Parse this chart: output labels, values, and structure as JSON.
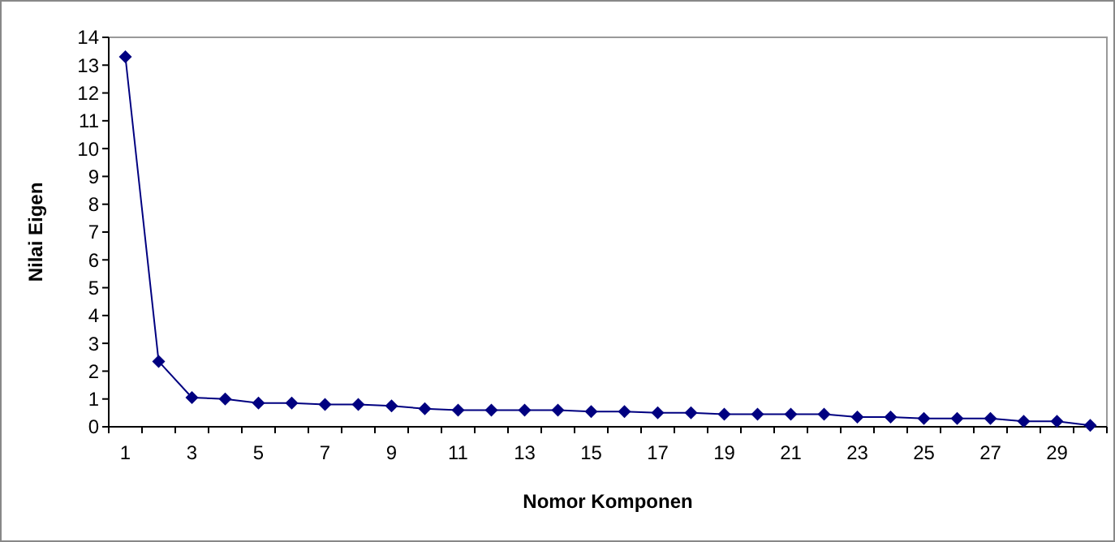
{
  "chart_data": {
    "type": "line",
    "xlabel": "Nomor Komponen",
    "ylabel": "Nilai Eigen",
    "categories": [
      "1",
      null,
      "3",
      null,
      "5",
      null,
      "7",
      null,
      "9",
      null,
      "11",
      null,
      "13",
      null,
      "15",
      null,
      "17",
      null,
      "19",
      null,
      "21",
      null,
      "23",
      null,
      "25",
      null,
      "27",
      null,
      "29",
      null
    ],
    "series": [
      {
        "color": "#000080",
        "values": [
          13.3,
          2.35,
          1.05,
          1.0,
          0.85,
          0.85,
          0.8,
          0.8,
          0.75,
          0.65,
          0.6,
          0.6,
          0.6,
          0.6,
          0.55,
          0.55,
          0.5,
          0.5,
          0.45,
          0.45,
          0.45,
          0.45,
          0.35,
          0.35,
          0.3,
          0.3,
          0.3,
          0.2,
          0.2,
          0.05
        ]
      }
    ],
    "ylim": [
      0,
      14
    ],
    "yticks": [
      0,
      1,
      2,
      3,
      4,
      5,
      6,
      7,
      8,
      9,
      10,
      11,
      12,
      13,
      14
    ],
    "marker": "diamond",
    "grid": false
  }
}
